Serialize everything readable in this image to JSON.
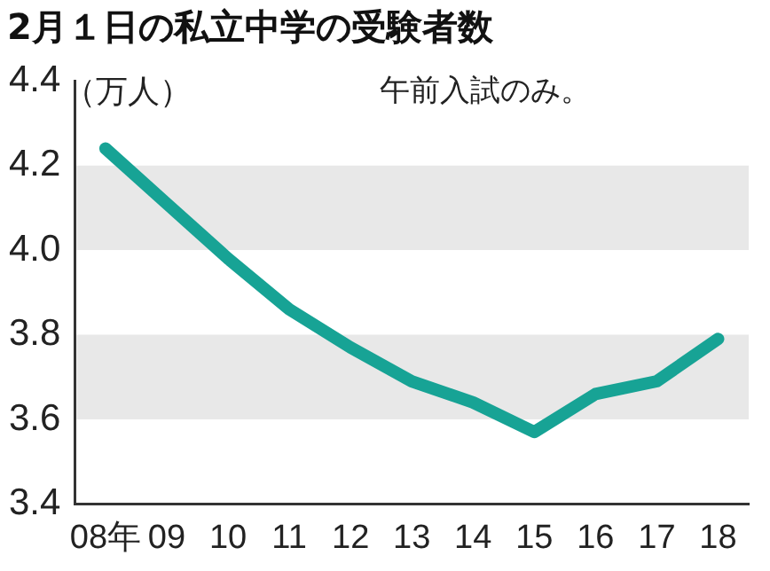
{
  "chart_data": {
    "type": "line",
    "title": "2月１日の私立中学の受験者数",
    "ylabel": "（万人）",
    "annotations": [
      "午前入試のみ。"
    ],
    "categories": [
      "08年",
      "09",
      "10",
      "11",
      "12",
      "13",
      "14",
      "15",
      "16",
      "17",
      "18"
    ],
    "series": [
      {
        "color": "#17a395",
        "values": [
          4.24,
          4.11,
          3.98,
          3.86,
          3.77,
          3.69,
          3.64,
          3.57,
          3.66,
          3.69,
          3.79
        ]
      }
    ],
    "ylim": [
      3.4,
      4.4
    ],
    "yticks": [
      {
        "value": 3.4,
        "label": "3.4"
      },
      {
        "value": 3.6,
        "label": "3.6"
      },
      {
        "value": 3.8,
        "label": "3.8"
      },
      {
        "value": 4.0,
        "label": "4.0"
      },
      {
        "value": 4.2,
        "label": "4.2"
      },
      {
        "value": 4.4,
        "label": "4.4"
      }
    ],
    "bands": [
      {
        "axis": "y",
        "from": 4.0,
        "to": 4.2,
        "color": "#e8e8e8"
      },
      {
        "axis": "y",
        "from": 3.6,
        "to": 3.8,
        "color": "#e8e8e8"
      }
    ],
    "grid": false,
    "legend": false,
    "marker": "none",
    "line_style": "solid"
  }
}
